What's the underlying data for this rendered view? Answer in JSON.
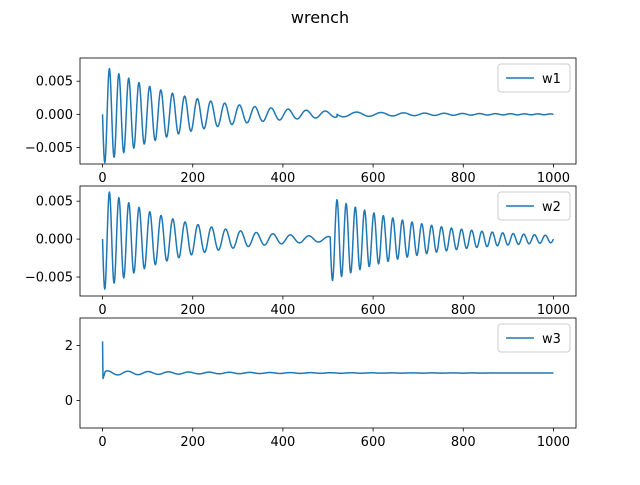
{
  "chart_data": {
    "title": "wrench",
    "type": "line",
    "line_color": "#1f77b4",
    "panels": [
      {
        "type": "line",
        "series": [
          {
            "name": "w1",
            "segments": [
              {
                "x0": 0,
                "x1": 520,
                "decay": 0.0055,
                "amp": 0.0075,
                "p0": 20,
                "p1": 30
              },
              {
                "x0": 520,
                "x1": 1000,
                "decay": 0.004,
                "amp": 0.0004,
                "p0": 60,
                "p1": 40
              }
            ]
          }
        ],
        "xlim": [
          -50,
          1050
        ],
        "ylim": [
          -0.0075,
          0.0085
        ],
        "xticks": [
          0,
          200,
          400,
          600,
          800,
          1000
        ],
        "yticks": [
          0.005,
          0.0,
          -0.005
        ],
        "ytick_labels": [
          "0.005",
          "0.000",
          "−0.005"
        ],
        "legend": "upper right",
        "grid": false
      },
      {
        "type": "line",
        "series": [
          {
            "name": "w2",
            "segments": [
              {
                "x0": 0,
                "x1": 505,
                "decay": 0.006,
                "amp": 0.0068,
                "p0": 20,
                "p1": 30
              },
              {
                "x0": 505,
                "x1": 1000,
                "decay": 0.005,
                "amp": 0.0056,
                "p0": 20,
                "p1": 22
              }
            ]
          }
        ],
        "xlim": [
          -50,
          1050
        ],
        "ylim": [
          -0.0075,
          0.007
        ],
        "xticks": [
          0,
          200,
          400,
          600,
          800,
          1000
        ],
        "yticks": [
          0.005,
          0.0,
          -0.005
        ],
        "ytick_labels": [
          "0.005",
          "0.000",
          "−0.005"
        ],
        "legend": "upper right",
        "grid": false
      },
      {
        "type": "line",
        "series": [
          {
            "name": "w3",
            "start_value": 2.15,
            "baseline": 1.0,
            "oscillation_amp": 0.08,
            "period": 45
          }
        ],
        "xlim": [
          -50,
          1050
        ],
        "ylim": [
          -1.0,
          3.0
        ],
        "xticks": [
          0,
          200,
          400,
          600,
          800,
          1000
        ],
        "yticks": [
          2,
          0
        ],
        "ytick_labels": [
          "2",
          "0"
        ],
        "legend": "upper right",
        "grid": false
      }
    ]
  }
}
